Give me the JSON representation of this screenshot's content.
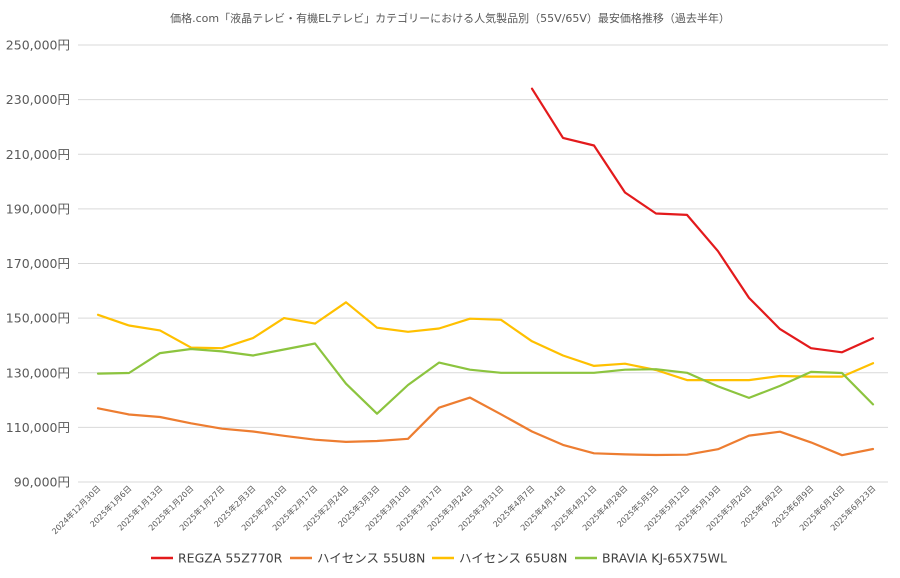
{
  "chart_data": {
    "type": "line",
    "title": "価格.com「液晶テレビ・有機ELテレビ」カテゴリーにおける人気製品別（55V/65V）最安価格推移（過去半年）",
    "ylim": [
      90000,
      250000
    ],
    "yticks": [
      {
        "value": 90000,
        "label": "90,000円"
      },
      {
        "value": 110000,
        "label": "110,000円"
      },
      {
        "value": 130000,
        "label": "130,000円"
      },
      {
        "value": 150000,
        "label": "150,000円"
      },
      {
        "value": 170000,
        "label": "170,000円"
      },
      {
        "value": 190000,
        "label": "190,000円"
      },
      {
        "value": 210000,
        "label": "210,000円"
      },
      {
        "value": 230000,
        "label": "230,000円"
      },
      {
        "value": 250000,
        "label": "250,000円"
      }
    ],
    "grid": true,
    "legend_position": "bottom",
    "categories": [
      "2024年12月30日",
      "2025年1月6日",
      "2025年1月13日",
      "2025年1月20日",
      "2025年1月27日",
      "2025年2月3日",
      "2025年2月10日",
      "2025年2月17日",
      "2025年2月24日",
      "2025年3月3日",
      "2025年3月10日",
      "2025年3月17日",
      "2025年3月24日",
      "2025年3月31日",
      "2025年4月7日",
      "2025年4月14日",
      "2025年4月21日",
      "2025年4月28日",
      "2025年5月5日",
      "2025年5月12日",
      "2025年5月19日",
      "2025年5月26日",
      "2025年6月2日",
      "2025年6月9日",
      "2025年6月16日",
      "2025年6月23日"
    ],
    "series": [
      {
        "name": "REGZA 55Z770R",
        "color": "#e31a1c",
        "values": [
          null,
          null,
          null,
          null,
          null,
          null,
          null,
          null,
          null,
          null,
          null,
          null,
          null,
          null,
          234000,
          216000,
          213200,
          196000,
          188300,
          187800,
          174500,
          157400,
          146000,
          139000,
          137500,
          142600
        ]
      },
      {
        "name": "ハイセンス 55U8N",
        "color": "#ed7d31",
        "values": [
          117000,
          114700,
          113800,
          111500,
          109500,
          108500,
          106900,
          105500,
          104700,
          105000,
          105800,
          117200,
          120900,
          114800,
          108500,
          103600,
          100500,
          100100,
          99900,
          100000,
          102000,
          107000,
          108400,
          104500,
          99800,
          102100
        ]
      },
      {
        "name": "ハイセンス 65U8N",
        "color": "#ffc000",
        "values": [
          151200,
          147300,
          145500,
          139200,
          139000,
          142700,
          150000,
          148000,
          155800,
          146500,
          145000,
          146200,
          149800,
          149400,
          141500,
          136300,
          132500,
          133300,
          131000,
          127300,
          127300,
          127300,
          128800,
          128600,
          128600,
          133500
        ]
      },
      {
        "name": "BRAVIA KJ-65X75WL",
        "color": "#8cc43f",
        "values": [
          129700,
          129900,
          137200,
          138700,
          137800,
          136300,
          138500,
          140700,
          126000,
          115000,
          125500,
          133700,
          131100,
          130000,
          130000,
          130000,
          130000,
          131100,
          131300,
          130000,
          125000,
          120800,
          125200,
          130300,
          129900,
          118400
        ]
      }
    ]
  }
}
